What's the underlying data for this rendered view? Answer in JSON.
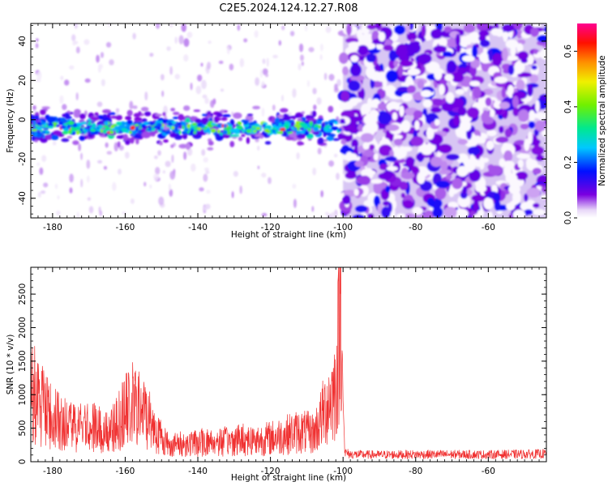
{
  "title": "C2E5.2024.124.12.27.R08",
  "chart_data": [
    {
      "type": "heatmap",
      "name": "spectrogram",
      "xlabel": "Height of straight line (km)",
      "ylabel": "Frequency (Hz)",
      "xlim": [
        -186,
        -44
      ],
      "ylim": [
        -50,
        49
      ],
      "xticks": [
        -180,
        -160,
        -140,
        -120,
        -100,
        -80,
        -60
      ],
      "yticks": [
        -40,
        -20,
        0,
        20,
        40
      ],
      "xtick_labels": [
        "-180",
        "-160",
        "-140",
        "-120",
        "-100",
        "-80",
        "-60"
      ],
      "ytick_labels": [
        "-40",
        "-20",
        "0",
        "20",
        "40"
      ],
      "colorbar": {
        "label": "Normalized spectral amplitude",
        "range": [
          0.0,
          0.7
        ],
        "ticks": [
          0.0,
          0.2,
          0.4,
          0.6
        ],
        "tick_labels": [
          "0.0",
          "0.2",
          "0.4",
          "0.6"
        ]
      },
      "signal_band": {
        "x_range": [
          -186,
          -100
        ],
        "center_frequency": -4,
        "half_width": 6,
        "peak_amplitude": 0.62
      },
      "noise_region": {
        "x_range": [
          -100,
          -44
        ],
        "typical_amplitude": 0.1
      }
    },
    {
      "type": "line",
      "name": "snr",
      "xlabel": "Height of straight line (km)",
      "ylabel": "SNR (10 * v/v)",
      "xlim": [
        -186,
        -44
      ],
      "ylim": [
        0,
        2900
      ],
      "xticks": [
        -180,
        -160,
        -140,
        -120,
        -100,
        -80,
        -60
      ],
      "yticks": [
        0,
        500,
        1000,
        1500,
        2000,
        2500
      ],
      "xtick_labels": [
        "-180",
        "-160",
        "-140",
        "-120",
        "-100",
        "-80",
        "-60"
      ],
      "ytick_labels": [
        "0",
        "500",
        "1000",
        "1500",
        "2000",
        "2500"
      ],
      "color": "#f03030",
      "series": [
        {
          "name": "SNR",
          "x": [
            -186,
            -184,
            -180,
            -176,
            -172,
            -168,
            -164,
            -160,
            -158,
            -154,
            -151,
            -148,
            -144,
            -140,
            -136,
            -132,
            -128,
            -124,
            -120,
            -116,
            -112,
            -108,
            -106,
            -104,
            -102,
            -101,
            -100.5,
            -100,
            -99.5,
            -98,
            -90,
            -80,
            -70,
            -60,
            -50,
            -44
          ],
          "y": [
            1200,
            900,
            650,
            550,
            520,
            500,
            450,
            750,
            850,
            700,
            420,
            250,
            260,
            280,
            300,
            300,
            340,
            320,
            350,
            400,
            450,
            420,
            650,
            900,
            1100,
            2000,
            2850,
            900,
            150,
            120,
            115,
            120,
            120,
            118,
            125,
            130
          ]
        }
      ]
    }
  ]
}
